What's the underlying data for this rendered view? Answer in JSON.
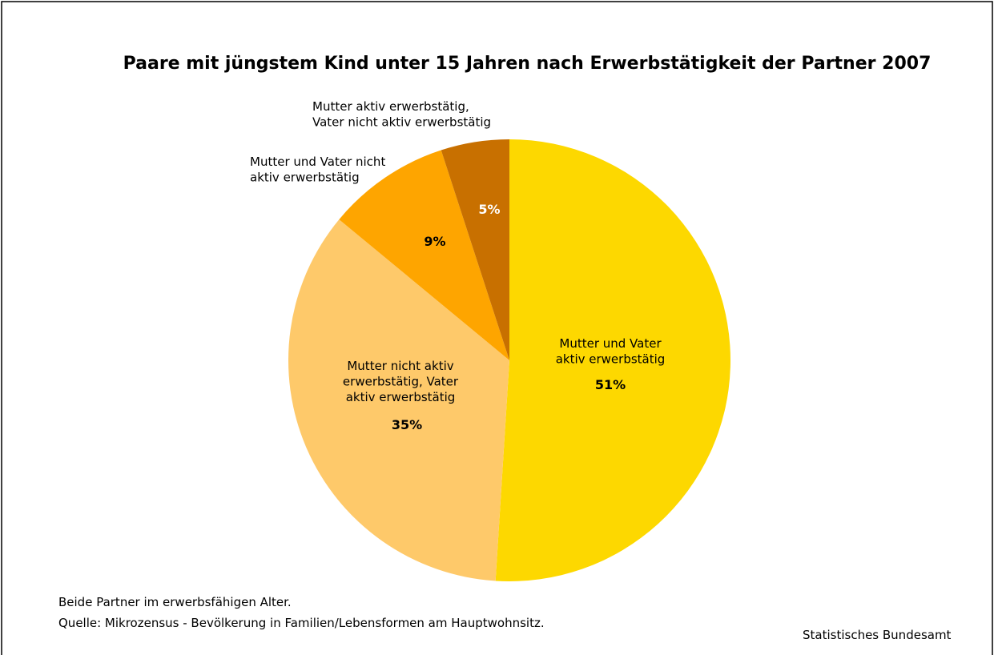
{
  "chart_data": {
    "type": "pie",
    "title": "Paare mit jüngstem Kind unter 15 Jahren nach Erwerbstätigkeit der Partner 2007",
    "categories": [
      "Mutter und Vater\naktiv erwerbstätig",
      "Mutter nicht aktiv\nerwerbstätig, Vater\naktiv erwerbstätig",
      "Mutter und Vater nicht\naktiv erwerbstätig",
      "Mutter aktiv erwerbstätig,\nVater nicht aktiv erwerbstätig"
    ],
    "values": [
      51,
      35,
      9,
      5
    ],
    "value_labels": [
      "51%",
      "35%",
      "9%",
      "5%"
    ],
    "colors": [
      "#fdd800",
      "#fec96a",
      "#fea500",
      "#c87000"
    ],
    "label_colors": [
      "#000000",
      "#000000",
      "#000000",
      "#ffffff"
    ],
    "notes": [
      "Beide Partner im erwerbsfähigen Alter.",
      "Quelle: Mikrozensus - Bevölkerung in Familien/Lebensformen am Hauptwohnsitz."
    ],
    "source": "Statistisches Bundesamt"
  }
}
